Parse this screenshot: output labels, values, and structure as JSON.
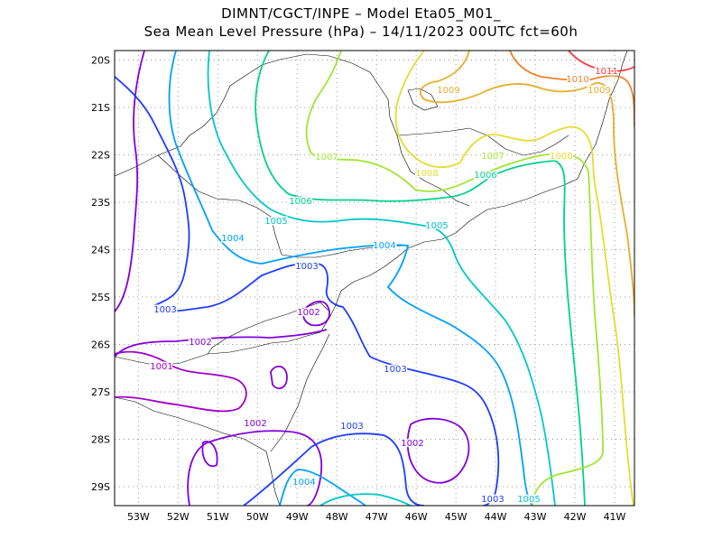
{
  "header": {
    "line1": "DIMNT/CGCT/INPE –  Model Eta05_M01_",
    "line2": "Sea Mean Level Pressure (hPa) – 14/11/2023 00UTC fct=60h"
  },
  "map": {
    "lon_range": [
      -53.6,
      -40.5
    ],
    "lat_range": [
      -29.4,
      -19.8
    ],
    "lon_ticks": [
      "53W",
      "52W",
      "51W",
      "50W",
      "49W",
      "48W",
      "47W",
      "46W",
      "45W",
      "44W",
      "43W",
      "42W",
      "41W"
    ],
    "lat_ticks": [
      "20S",
      "21S",
      "22S",
      "23S",
      "24S",
      "25S",
      "26S",
      "27S",
      "28S",
      "29S"
    ],
    "grid_dotted": true
  },
  "contours": {
    "colors": {
      "1001": "#a000c8",
      "1002": "#8200dc",
      "1003": "#1e3cff",
      "1004": "#00a0ff",
      "1005": "#00c8c8",
      "1006": "#00d28c",
      "1007": "#a0e632",
      "1008": "#e6dc32",
      "1009": "#e6af2d",
      "1010": "#f08228",
      "1011": "#fa3c3c"
    },
    "labels": [
      {
        "text": "1011",
        "level": "1011"
      },
      {
        "text": "1010",
        "level": "1010"
      },
      {
        "text": "1009",
        "level": "1009"
      },
      {
        "text": "1009",
        "level": "1009"
      },
      {
        "text": "1008",
        "level": "1008"
      },
      {
        "text": "1008",
        "level": "1008"
      },
      {
        "text": "1007",
        "level": "1007"
      },
      {
        "text": "1007",
        "level": "1007"
      },
      {
        "text": "1006",
        "level": "1006"
      },
      {
        "text": "1006",
        "level": "1006"
      },
      {
        "text": "1005",
        "level": "1005"
      },
      {
        "text": "1005",
        "level": "1005"
      },
      {
        "text": "1005",
        "level": "1005"
      },
      {
        "text": "1004",
        "level": "1004"
      },
      {
        "text": "1004",
        "level": "1004"
      },
      {
        "text": "1004",
        "level": "1004"
      },
      {
        "text": "1003",
        "level": "1003"
      },
      {
        "text": "1003",
        "level": "1003"
      },
      {
        "text": "1003",
        "level": "1003"
      },
      {
        "text": "1003",
        "level": "1003"
      },
      {
        "text": "1003",
        "level": "1003"
      },
      {
        "text": "1002",
        "level": "1002"
      },
      {
        "text": "1002",
        "level": "1002"
      },
      {
        "text": "1002",
        "level": "1002"
      },
      {
        "text": "1002",
        "level": "1002"
      },
      {
        "text": "1001",
        "level": "1001"
      }
    ]
  }
}
